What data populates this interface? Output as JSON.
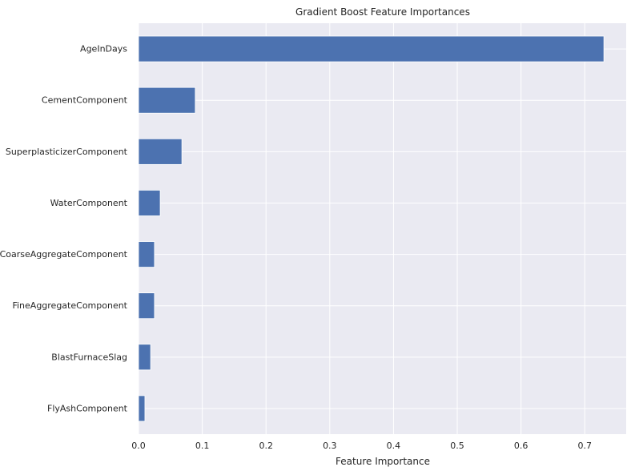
{
  "chart_data": {
    "type": "bar",
    "orientation": "horizontal",
    "title": "Gradient Boost Feature Importances",
    "xlabel": "Feature Importance",
    "ylabel": "",
    "categories": [
      "AgeInDays",
      "CementComponent",
      "SuperplasticizerComponent",
      "WaterComponent",
      "CoarseAggregateComponent",
      "FineAggregateComponent",
      "BlastFurnaceSlag",
      "FlyAshComponent"
    ],
    "values": [
      0.73,
      0.089,
      0.068,
      0.034,
      0.025,
      0.025,
      0.019,
      0.01
    ],
    "xlim": [
      0,
      0.765
    ],
    "xticks": [
      0.0,
      0.1,
      0.2,
      0.3,
      0.4,
      0.5,
      0.6,
      0.7
    ],
    "xtick_labels": [
      "0.0",
      "0.1",
      "0.2",
      "0.3",
      "0.4",
      "0.5",
      "0.6",
      "0.7"
    ],
    "grid": true,
    "legend": "none",
    "bar_color": "#4c72b0",
    "background_color": "#eaeaf2",
    "grid_color": "#ffffff"
  }
}
